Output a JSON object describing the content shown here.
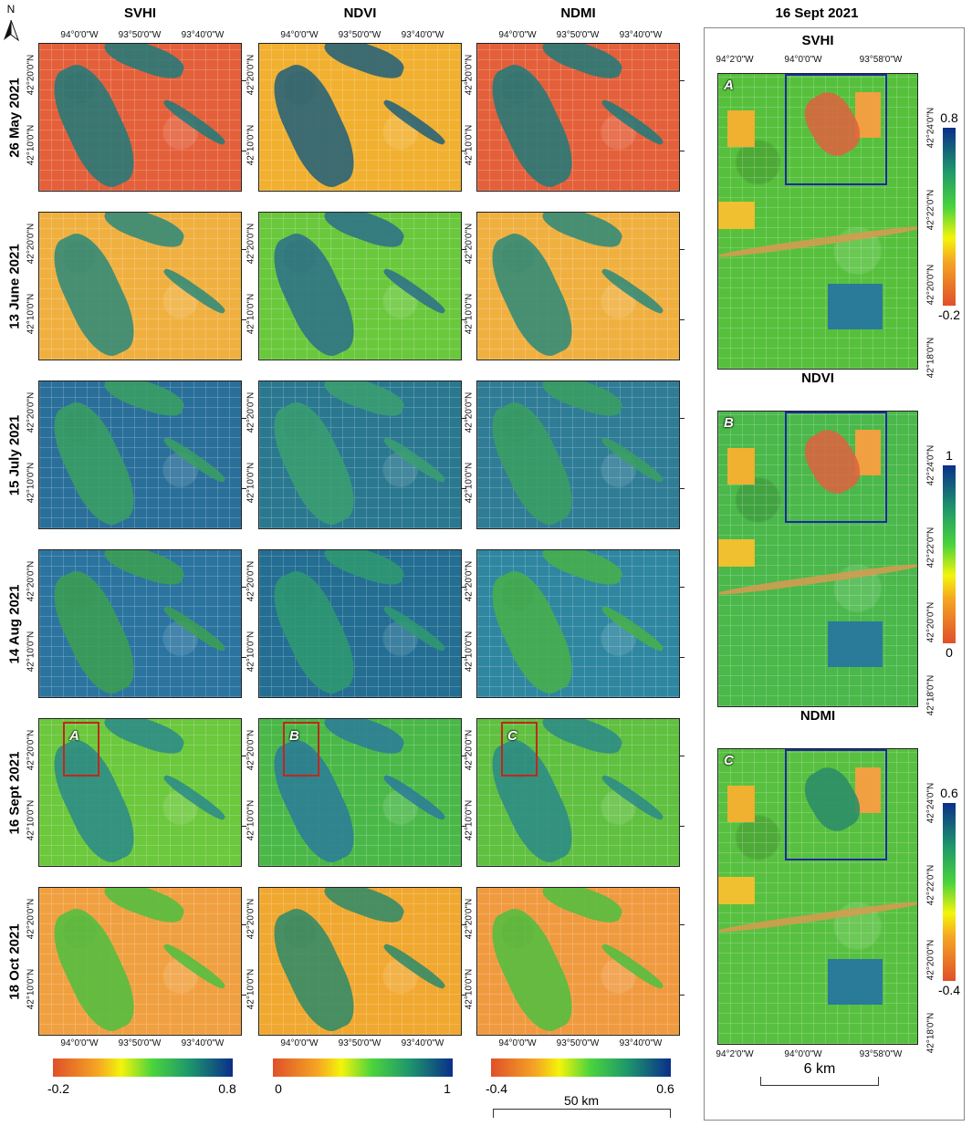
{
  "north": "N",
  "columns": [
    "SVHI",
    "NDVI",
    "NDMI"
  ],
  "rows": [
    "26 May 2021",
    "13 June 2021",
    "15 July 2021",
    "14 Aug 2021",
    "16 Sept 2021",
    "18 Oct 2021"
  ],
  "lon_labels": [
    "94°0'0\"W",
    "93°50'0\"W",
    "93°40'0\"W"
  ],
  "lat_labels": [
    "42°20'0\"N",
    "42°10'0\"N"
  ],
  "insets": [
    "A",
    "B",
    "C"
  ],
  "colorbars": [
    {
      "min": -0.2,
      "max": 0.8
    },
    {
      "min": 0,
      "max": 1
    },
    {
      "min": -0.4,
      "max": 0.6
    }
  ],
  "scale_bar": "50 km",
  "detail": {
    "title": "16 Sept 2021",
    "lon_labels": [
      "94°2'0\"W",
      "94°0'0\"W",
      "93°58'0\"W"
    ],
    "lat_labels": [
      "42°24'0\"N",
      "42°22'0\"N",
      "42°20'0\"N",
      "42°18'0\"N"
    ],
    "scale_bar": "6 km"
  }
}
